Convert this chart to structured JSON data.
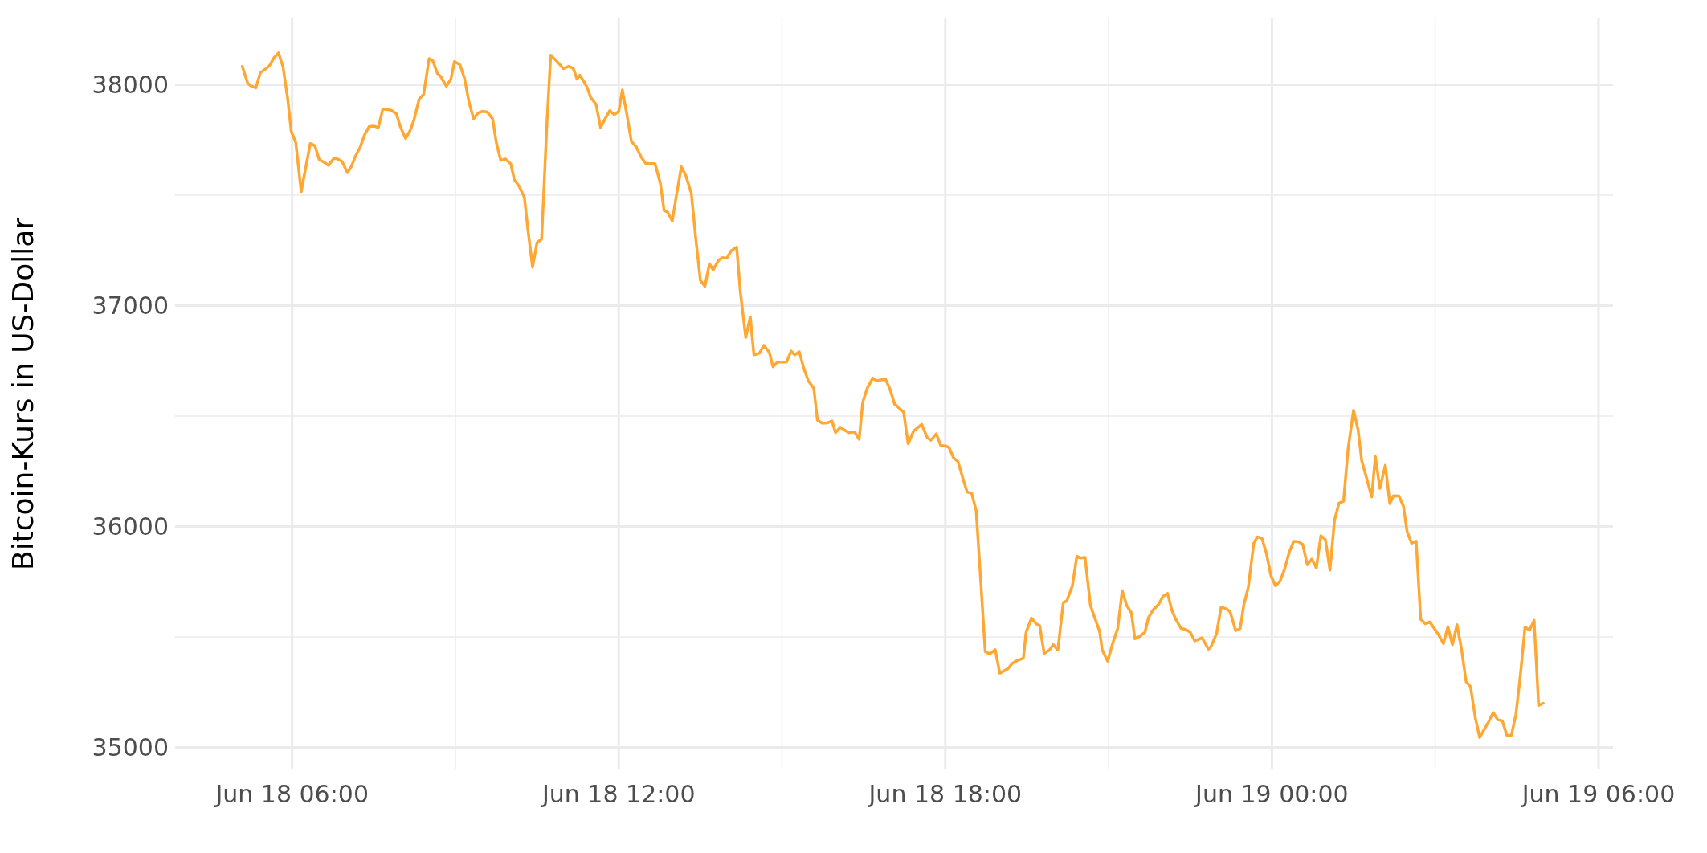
{
  "chart_data": {
    "type": "line",
    "ylabel": "Bitcoin-Kurs in US-Dollar",
    "color": "#ffa733",
    "grid": true,
    "xlim": [
      "--06-18T03:51",
      "--06-19T06:16"
    ],
    "xticks": [
      {
        "value": "--06-18T06:00",
        "label": "Jun 18 06:00"
      },
      {
        "value": "--06-18T09:00",
        "label": null
      },
      {
        "value": "--06-18T12:00",
        "label": "Jun 18 12:00"
      },
      {
        "value": "--06-18T15:00",
        "label": null
      },
      {
        "value": "--06-18T18:00",
        "label": "Jun 18 18:00"
      },
      {
        "value": "--06-18T21:00",
        "label": null
      },
      {
        "value": "--06-19T00:00",
        "label": "Jun 19 00:00"
      },
      {
        "value": "--06-19T03:00",
        "label": null
      },
      {
        "value": "--06-19T06:00",
        "label": "Jun 19 06:00"
      }
    ],
    "ylim": [
      34900,
      38300
    ],
    "yticks": [
      35000,
      {
        "value": 35500,
        "label": null
      },
      36000,
      {
        "value": 36500,
        "label": null
      },
      37000,
      {
        "value": 37500,
        "label": null
      },
      38000
    ],
    "x": [
      "--06-18T05:05",
      "--06-18T05:11",
      "--06-18T05:15",
      "--06-18T05:20",
      "--06-18T05:25",
      "--06-18T05:30",
      "--06-18T05:35",
      "--06-18T05:40",
      "--06-18T05:45",
      "--06-18T05:50",
      "--06-18T05:55",
      "--06-18T05:59",
      "--06-18T06:04",
      "--06-18T06:10",
      "--06-18T06:20",
      "--06-18T06:25",
      "--06-18T06:30",
      "--06-18T06:35",
      "--06-18T06:40",
      "--06-18T06:46",
      "--06-18T06:50",
      "--06-18T06:55",
      "--06-18T07:01",
      "--06-18T07:05",
      "--06-18T07:10",
      "--06-18T07:15",
      "--06-18T07:20",
      "--06-18T07:25",
      "--06-18T07:30",
      "--06-18T07:35",
      "--06-18T07:40",
      "--06-18T07:44",
      "--06-18T07:49",
      "--06-18T07:55",
      "--06-18T07:59",
      "--06-18T08:05",
      "--06-18T08:10",
      "--06-18T08:14",
      "--06-18T08:20",
      "--06-18T08:25",
      "--06-18T08:31",
      "--06-18T08:35",
      "--06-18T08:40",
      "--06-18T08:44",
      "--06-18T08:50",
      "--06-18T08:55",
      "--06-18T08:59",
      "--06-18T09:05",
      "--06-18T09:10",
      "--06-18T09:15",
      "--06-18T09:20",
      "--06-18T09:25",
      "--06-18T09:29",
      "--06-18T09:35",
      "--06-18T09:41",
      "--06-18T09:45",
      "--06-18T09:50",
      "--06-18T09:55",
      "--06-18T10:01",
      "--06-18T10:05",
      "--06-18T10:10",
      "--06-18T10:16",
      "--06-18T10:20",
      "--06-18T10:25",
      "--06-18T10:30",
      "--06-18T10:35",
      "--06-18T10:41",
      "--06-18T10:45",
      "--06-18T10:52",
      "--06-18T10:59",
      "--06-18T11:05",
      "--06-18T11:10",
      "--06-18T11:14",
      "--06-18T11:17",
      "--06-18T11:21",
      "--06-18T11:25",
      "--06-18T11:29",
      "--06-18T11:35",
      "--06-18T11:40",
      "--06-18T11:45",
      "--06-18T11:50",
      "--06-18T11:55",
      "--06-18T12:00",
      "--06-18T12:04",
      "--06-18T12:09",
      "--06-18T12:14",
      "--06-18T12:19",
      "--06-18T12:25",
      "--06-18T12:30",
      "--06-18T12:35",
      "--06-18T12:40",
      "--06-18T12:46",
      "--06-18T12:50",
      "--06-18T12:54",
      "--06-18T12:59",
      "--06-18T13:04",
      "--06-18T13:09",
      "--06-18T13:14",
      "--06-18T13:20",
      "--06-18T13:25",
      "--06-18T13:30",
      "--06-18T13:35",
      "--06-18T13:40",
      "--06-18T13:44",
      "--06-18T13:50",
      "--06-18T13:54",
      "--06-18T13:59",
      "--06-18T14:04",
      "--06-18T14:10",
      "--06-18T14:14",
      "--06-18T14:20",
      "--06-18T14:25",
      "--06-18T14:29",
      "--06-18T14:35",
      "--06-18T14:40",
      "--06-18T14:46",
      "--06-18T14:50",
      "--06-18T14:55",
      "--06-18T15:00",
      "--06-18T15:05",
      "--06-18T15:10",
      "--06-18T15:14",
      "--06-18T15:19",
      "--06-18T15:24",
      "--06-18T15:29",
      "--06-18T15:35",
      "--06-18T15:39",
      "--06-18T15:44",
      "--06-18T15:49",
      "--06-18T15:55",
      "--06-18T15:59",
      "--06-18T16:04",
      "--06-18T16:09",
      "--06-18T16:14",
      "--06-18T16:20",
      "--06-18T16:25",
      "--06-18T16:29",
      "--06-18T16:34",
      "--06-18T16:40",
      "--06-18T16:44",
      "--06-18T16:54",
      "--06-18T16:59",
      "--06-18T17:04",
      "--06-18T17:14",
      "--06-18T17:19",
      "--06-18T17:25",
      "--06-18T17:34",
      "--06-18T17:40",
      "--06-18T17:44",
      "--06-18T17:50",
      "--06-18T17:55",
      "--06-18T18:00",
      "--06-18T18:04",
      "--06-18T18:09",
      "--06-18T18:14",
      "--06-18T18:19",
      "--06-18T18:24",
      "--06-18T18:29",
      "--06-18T18:34",
      "--06-18T18:39",
      "--06-18T18:44",
      "--06-18T18:49",
      "--06-18T18:55",
      "--06-18T19:00",
      "--06-18T19:09",
      "--06-18T19:14",
      "--06-18T19:20",
      "--06-18T19:26",
      "--06-18T19:29",
      "--06-18T19:35",
      "--06-18T19:40",
      "--06-18T19:44",
      "--06-18T19:49",
      "--06-18T19:55",
      "--06-18T19:59",
      "--06-18T20:04",
      "--06-18T20:10",
      "--06-18T20:14",
      "--06-18T20:20",
      "--06-18T20:25",
      "--06-18T20:29",
      "--06-18T20:34",
      "--06-18T20:40",
      "--06-18T20:45",
      "--06-18T20:50",
      "--06-18T20:53",
      "--06-18T20:59",
      "--06-18T21:04",
      "--06-18T21:10",
      "--06-18T21:15",
      "--06-18T21:20",
      "--06-18T21:25",
      "--06-18T21:29",
      "--06-18T21:34",
      "--06-18T21:40",
      "--06-18T21:44",
      "--06-18T21:49",
      "--06-18T21:55",
      "--06-18T22:00",
      "--06-18T22:05",
      "--06-18T22:10",
      "--06-18T22:14",
      "--06-18T22:20",
      "--06-18T22:25",
      "--06-18T22:30",
      "--06-18T22:35",
      "--06-18T22:43",
      "--06-18T22:50",
      "--06-18T22:53",
      "--06-18T22:59",
      "--06-18T23:04",
      "--06-18T23:10",
      "--06-18T23:14",
      "--06-18T23:20",
      "--06-18T23:25",
      "--06-18T23:29",
      "--06-18T23:34",
      "--06-18T23:40",
      "--06-18T23:44",
      "--06-18T23:49",
      "--06-18T23:54",
      "--06-18T23:59",
      "--06-19T00:04",
      "--06-19T00:09",
      "--06-19T00:14",
      "--06-19T00:19",
      "--06-19T00:24",
      "--06-19T00:29",
      "--06-19T00:34",
      "--06-19T00:39",
      "--06-19T00:44",
      "--06-19T00:49",
      "--06-19T00:54",
      "--06-19T00:59",
      "--06-19T01:04",
      "--06-19T01:09",
      "--06-19T01:14",
      "--06-19T01:19",
      "--06-19T01:24",
      "--06-19T01:30",
      "--06-19T01:35",
      "--06-19T01:39",
      "--06-19T01:45",
      "--06-19T01:50",
      "--06-19T01:54",
      "--06-19T01:59",
      "--06-19T02:05",
      "--06-19T02:10",
      "--06-19T02:14",
      "--06-19T02:20",
      "--06-19T02:25",
      "--06-19T02:29",
      "--06-19T02:34",
      "--06-19T02:39",
      "--06-19T02:44",
      "--06-19T02:49",
      "--06-19T02:54",
      "--06-19T02:59",
      "--06-19T03:04",
      "--06-19T03:09",
      "--06-19T03:14",
      "--06-19T03:19",
      "--06-19T03:24",
      "--06-19T03:29",
      "--06-19T03:34",
      "--06-19T03:39",
      "--06-19T03:44",
      "--06-19T03:49",
      "--06-19T03:54",
      "--06-19T03:59",
      "--06-19T04:04",
      "--06-19T04:09",
      "--06-19T04:14",
      "--06-19T04:19",
      "--06-19T04:24",
      "--06-19T04:29",
      "--06-19T04:34",
      "--06-19T04:39",
      "--06-19T04:44",
      "--06-19T04:49",
      "--06-19T04:54",
      "--06-19T04:59"
    ],
    "values": [
      38083,
      38007,
      37994,
      37986,
      38055,
      38069,
      38086,
      38122,
      38144,
      38080,
      37940,
      37789,
      37739,
      37516,
      37734,
      37724,
      37660,
      37650,
      37635,
      37667,
      37664,
      37653,
      37602,
      37628,
      37678,
      37717,
      37775,
      37811,
      37813,
      37806,
      37890,
      37888,
      37885,
      37868,
      37813,
      37757,
      37792,
      37836,
      37935,
      37957,
      38118,
      38109,
      38052,
      38036,
      37993,
      38026,
      38105,
      38090,
      38029,
      37921,
      37846,
      37872,
      37879,
      37877,
      37846,
      37739,
      37657,
      37664,
      37642,
      37569,
      37542,
      37490,
      37341,
      37174,
      37286,
      37301,
      37839,
      38134,
      38105,
      38073,
      38083,
      38073,
      38026,
      38043,
      38019,
      37990,
      37943,
      37911,
      37806,
      37846,
      37882,
      37865,
      37879,
      37976,
      37865,
      37743,
      37720,
      37671,
      37643,
      37643,
      37643,
      37552,
      37430,
      37423,
      37383,
      37509,
      37628,
      37588,
      37509,
      37301,
      37114,
      37088,
      37190,
      37161,
      37205,
      37217,
      37215,
      37248,
      37265,
      37064,
      36856,
      36949,
      36777,
      36784,
      36820,
      36788,
      36723,
      36745,
      36745,
      36745,
      36794,
      36777,
      36791,
      36716,
      36659,
      36626,
      36482,
      36468,
      36468,
      36478,
      36425,
      36449,
      36436,
      36425,
      36428,
      36395,
      36563,
      36627,
      36672,
      36660,
      36667,
      36622,
      36555,
      36518,
      36375,
      36432,
      36462,
      36403,
      36390,
      36420,
      36366,
      36365,
      36358,
      36311,
      36294,
      36223,
      36156,
      36151,
      36072,
      35756,
      35433,
      35423,
      35442,
      35336,
      35356,
      35381,
      35395,
      35403,
      35521,
      35585,
      35560,
      35551,
      35425,
      35442,
      35465,
      35440,
      35655,
      35664,
      35731,
      35865,
      35857,
      35860,
      35642,
      35583,
      35526,
      35440,
      35390,
      35465,
      35538,
      35709,
      35642,
      35610,
      35492,
      35501,
      35521,
      35588,
      35622,
      35647,
      35684,
      35697,
      35617,
      35580,
      35538,
      35534,
      35521,
      35482,
      35496,
      35445,
      35457,
      35516,
      35635,
      35627,
      35613,
      35529,
      35538,
      35644,
      35726,
      35924,
      35953,
      35946,
      35877,
      35776,
      35731,
      35753,
      35807,
      35882,
      35933,
      35931,
      35919,
      35827,
      35852,
      35812,
      35958,
      35941,
      35802,
      36029,
      36106,
      36114,
      36353,
      36526,
      36437,
      36297,
      36210,
      36134,
      36316,
      36173,
      36277,
      36104,
      36139,
      36138,
      36092,
      35978,
      35924,
      35933,
      35580,
      35560,
      35568,
      35538,
      35508,
      35470,
      35546,
      35465,
      35555,
      35445,
      35299,
      35274,
      35139,
      35045,
      35081,
      35117,
      35158,
      35125,
      35120,
      35055,
      35055,
      35150,
      35330,
      35545,
      35530,
      35575,
      35190,
      35200
    ]
  }
}
